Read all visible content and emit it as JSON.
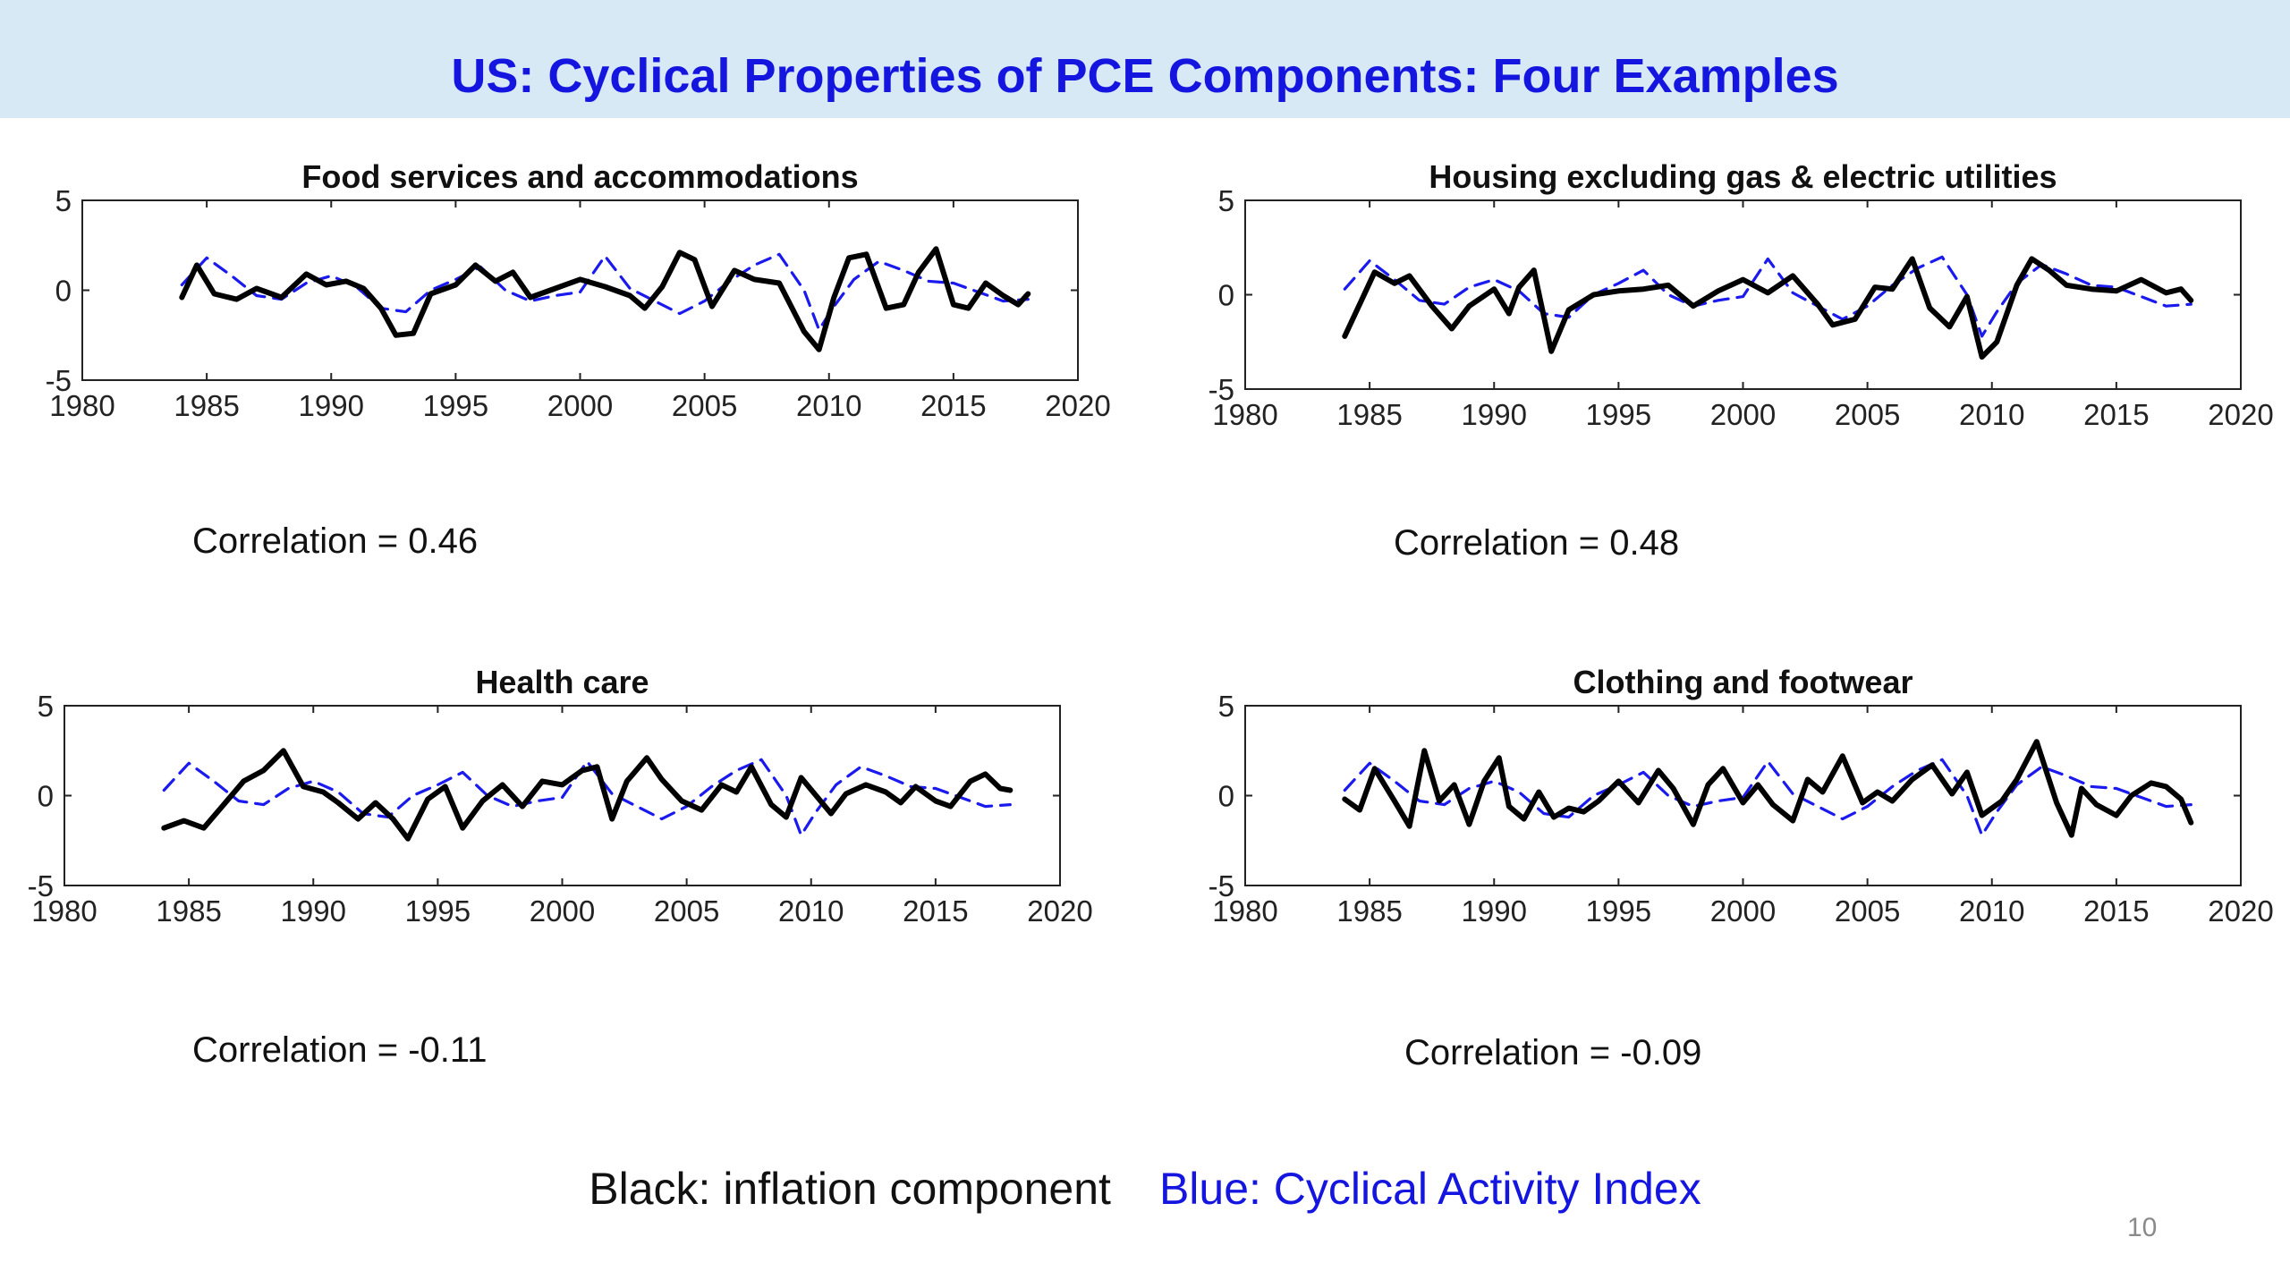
{
  "slide": {
    "title": "US: Cyclical Properties of PCE Components: Four Examples",
    "legend_black": "Black: inflation component",
    "legend_blue": "Blue: Cyclical Activity Index",
    "page_number": "10"
  },
  "colors": {
    "inflation_line": "#000000",
    "activity_index_line": "#1a1aee",
    "title": "#1515e0",
    "title_bar": "#d6e9f5"
  },
  "chart_data": [
    {
      "type": "line",
      "title": "Food services and accommodations",
      "correlation_text": "Correlation = 0.46",
      "xlim": [
        1980,
        2020
      ],
      "ylim": [
        -5,
        5
      ],
      "xticks": [
        1980,
        1985,
        1990,
        1995,
        2000,
        2005,
        2010,
        2015,
        2020
      ],
      "yticks": [
        -5,
        0,
        5
      ],
      "grid": false,
      "series": [
        {
          "role": "inflation",
          "style": "solid-black",
          "x": [
            1984.0,
            1984.6,
            1985.3,
            1986.2,
            1987.0,
            1988.0,
            1989.0,
            1989.8,
            1990.6,
            1991.3,
            1992.0,
            1992.6,
            1993.3,
            1994.0,
            1995.0,
            1995.8,
            1996.6,
            1997.3,
            1998.0,
            1999.0,
            2000.0,
            2001.0,
            2002.0,
            2002.6,
            2003.3,
            2004.0,
            2004.6,
            2005.3,
            2006.2,
            2007.0,
            2008.0,
            2009.0,
            2009.6,
            2010.2,
            2010.8,
            2011.5,
            2012.3,
            2013.0,
            2013.6,
            2014.3,
            2015.0,
            2015.6,
            2016.3,
            2017.0,
            2017.6,
            2018.0
          ],
          "y": [
            -0.4,
            1.4,
            -0.2,
            -0.5,
            0.1,
            -0.4,
            0.9,
            0.3,
            0.5,
            0.1,
            -1.0,
            -2.5,
            -2.4,
            -0.2,
            0.3,
            1.4,
            0.5,
            1.0,
            -0.4,
            0.1,
            0.6,
            0.2,
            -0.3,
            -1.0,
            0.2,
            2.1,
            1.7,
            -0.9,
            1.1,
            0.6,
            0.4,
            -2.3,
            -3.3,
            -0.4,
            1.8,
            2.0,
            -1.0,
            -0.8,
            1.0,
            2.3,
            -0.8,
            -1.0,
            0.4,
            -0.3,
            -0.8,
            -0.2
          ]
        },
        {
          "role": "activity_index",
          "style": "dashed-blue",
          "x": [
            1984.0,
            1985.0,
            1986.0,
            1987.0,
            1988.0,
            1989.0,
            1990.0,
            1991.0,
            1992.0,
            1993.0,
            1994.0,
            1995.0,
            1996.0,
            1997.0,
            1998.0,
            1999.0,
            2000.0,
            2001.0,
            2002.0,
            2003.0,
            2004.0,
            2005.0,
            2006.0,
            2007.0,
            2008.0,
            2009.0,
            2009.6,
            2010.2,
            2011.0,
            2012.0,
            2013.0,
            2014.0,
            2015.0,
            2016.0,
            2017.0,
            2018.0
          ],
          "y": [
            0.3,
            1.8,
            0.8,
            -0.3,
            -0.5,
            0.4,
            0.8,
            0.2,
            -1.0,
            -1.2,
            0.0,
            0.6,
            1.3,
            0.0,
            -0.6,
            -0.3,
            -0.1,
            1.9,
            0.1,
            -0.6,
            -1.3,
            -0.6,
            0.5,
            1.4,
            2.0,
            0.0,
            -2.2,
            -0.9,
            0.6,
            1.6,
            1.1,
            0.5,
            0.4,
            -0.1,
            -0.6,
            -0.5
          ]
        }
      ]
    },
    {
      "type": "line",
      "title": "Housing excluding gas & electric utilities",
      "correlation_text": "Correlation = 0.48",
      "xlim": [
        1980,
        2020
      ],
      "ylim": [
        -5,
        5
      ],
      "xticks": [
        1980,
        1985,
        1990,
        1995,
        2000,
        2005,
        2010,
        2015,
        2020
      ],
      "yticks": [
        -5,
        0,
        5
      ],
      "grid": false,
      "series": [
        {
          "role": "inflation",
          "style": "solid-black",
          "x": [
            1984.0,
            1984.6,
            1985.2,
            1986.0,
            1986.6,
            1987.5,
            1988.3,
            1989.0,
            1990.0,
            1990.6,
            1991.0,
            1991.6,
            1992.3,
            1993.0,
            1994.0,
            1995.0,
            1996.0,
            1997.0,
            1998.0,
            1999.0,
            2000.0,
            2001.0,
            2002.0,
            2003.0,
            2003.6,
            2004.5,
            2005.3,
            2006.0,
            2006.8,
            2007.5,
            2008.3,
            2009.0,
            2009.6,
            2010.2,
            2011.0,
            2011.6,
            2012.3,
            2013.0,
            2014.0,
            2015.0,
            2016.0,
            2017.0,
            2017.6,
            2018.0
          ],
          "y": [
            -2.2,
            -0.5,
            1.2,
            0.6,
            1.0,
            -0.6,
            -1.8,
            -0.6,
            0.3,
            -1.0,
            0.4,
            1.3,
            -3.0,
            -0.8,
            0.0,
            0.2,
            0.3,
            0.5,
            -0.6,
            0.2,
            0.8,
            0.1,
            1.0,
            -0.5,
            -1.6,
            -1.3,
            0.4,
            0.3,
            1.9,
            -0.7,
            -1.7,
            -0.1,
            -3.3,
            -2.5,
            0.5,
            1.9,
            1.3,
            0.5,
            0.3,
            0.2,
            0.8,
            0.1,
            0.3,
            -0.3
          ]
        },
        {
          "role": "activity_index",
          "style": "dashed-blue",
          "x": [
            1984.0,
            1985.0,
            1986.0,
            1987.0,
            1988.0,
            1989.0,
            1990.0,
            1991.0,
            1992.0,
            1993.0,
            1994.0,
            1995.0,
            1996.0,
            1997.0,
            1998.0,
            1999.0,
            2000.0,
            2001.0,
            2002.0,
            2003.0,
            2004.0,
            2005.0,
            2006.0,
            2007.0,
            2008.0,
            2009.0,
            2009.6,
            2010.2,
            2011.0,
            2012.0,
            2013.0,
            2014.0,
            2015.0,
            2016.0,
            2017.0,
            2018.0
          ],
          "y": [
            0.3,
            1.8,
            0.8,
            -0.3,
            -0.5,
            0.4,
            0.8,
            0.2,
            -1.0,
            -1.2,
            0.0,
            0.6,
            1.3,
            0.0,
            -0.6,
            -0.3,
            -0.1,
            1.9,
            0.1,
            -0.6,
            -1.3,
            -0.6,
            0.5,
            1.4,
            2.0,
            0.0,
            -2.2,
            -0.9,
            0.6,
            1.6,
            1.1,
            0.5,
            0.4,
            -0.1,
            -0.6,
            -0.5
          ]
        }
      ]
    },
    {
      "type": "line",
      "title": "Health care",
      "correlation_text": "Correlation = -0.11",
      "xlim": [
        1980,
        2020
      ],
      "ylim": [
        -5,
        5
      ],
      "xticks": [
        1980,
        1985,
        1990,
        1995,
        2000,
        2005,
        2010,
        2015,
        2020
      ],
      "yticks": [
        -5,
        0,
        5
      ],
      "grid": false,
      "series": [
        {
          "role": "inflation",
          "style": "solid-black",
          "x": [
            1984.0,
            1984.8,
            1985.6,
            1986.4,
            1987.2,
            1988.0,
            1988.8,
            1989.6,
            1990.4,
            1991.0,
            1991.8,
            1992.5,
            1993.2,
            1993.8,
            1994.6,
            1995.3,
            1996.0,
            1996.8,
            1997.6,
            1998.4,
            1999.2,
            2000.0,
            2000.8,
            2001.4,
            2002.0,
            2002.6,
            2003.4,
            2004.0,
            2004.8,
            2005.6,
            2006.4,
            2007.0,
            2007.6,
            2008.4,
            2009.0,
            2009.6,
            2010.2,
            2010.8,
            2011.4,
            2012.2,
            2013.0,
            2013.6,
            2014.2,
            2015.0,
            2015.6,
            2016.4,
            2017.0,
            2017.6,
            2018.0
          ],
          "y": [
            -1.8,
            -1.4,
            -1.8,
            -0.5,
            0.8,
            1.4,
            2.5,
            0.5,
            0.2,
            -0.4,
            -1.3,
            -0.4,
            -1.3,
            -2.4,
            -0.2,
            0.5,
            -1.8,
            -0.3,
            0.6,
            -0.6,
            0.8,
            0.6,
            1.4,
            1.6,
            -1.3,
            0.8,
            2.1,
            0.9,
            -0.3,
            -0.8,
            0.6,
            0.2,
            1.6,
            -0.5,
            -1.2,
            1.0,
            0.0,
            -1.0,
            0.1,
            0.6,
            0.2,
            -0.4,
            0.5,
            -0.3,
            -0.6,
            0.8,
            1.2,
            0.4,
            0.3
          ]
        },
        {
          "role": "activity_index",
          "style": "dashed-blue",
          "x": [
            1984.0,
            1985.0,
            1986.0,
            1987.0,
            1988.0,
            1989.0,
            1990.0,
            1991.0,
            1992.0,
            1993.0,
            1994.0,
            1995.0,
            1996.0,
            1997.0,
            1998.0,
            1999.0,
            2000.0,
            2001.0,
            2002.0,
            2003.0,
            2004.0,
            2005.0,
            2006.0,
            2007.0,
            2008.0,
            2009.0,
            2009.6,
            2010.2,
            2011.0,
            2012.0,
            2013.0,
            2014.0,
            2015.0,
            2016.0,
            2017.0,
            2018.0
          ],
          "y": [
            0.3,
            1.8,
            0.8,
            -0.3,
            -0.5,
            0.4,
            0.8,
            0.2,
            -1.0,
            -1.2,
            0.0,
            0.6,
            1.3,
            0.0,
            -0.6,
            -0.3,
            -0.1,
            1.9,
            0.1,
            -0.6,
            -1.3,
            -0.6,
            0.5,
            1.4,
            2.0,
            0.0,
            -2.2,
            -0.9,
            0.6,
            1.6,
            1.1,
            0.5,
            0.4,
            -0.1,
            -0.6,
            -0.5
          ]
        }
      ]
    },
    {
      "type": "line",
      "title": "Clothing and footwear",
      "correlation_text": "Correlation = -0.09",
      "xlim": [
        1980,
        2020
      ],
      "ylim": [
        -5,
        5
      ],
      "xticks": [
        1980,
        1985,
        1990,
        1995,
        2000,
        2005,
        2010,
        2015,
        2020
      ],
      "yticks": [
        -5,
        0,
        5
      ],
      "grid": false,
      "series": [
        {
          "role": "inflation",
          "style": "solid-black",
          "x": [
            1984.0,
            1984.6,
            1985.2,
            1986.0,
            1986.6,
            1987.2,
            1987.8,
            1988.4,
            1989.0,
            1989.6,
            1990.2,
            1990.6,
            1991.2,
            1991.8,
            1992.4,
            1993.0,
            1993.6,
            1994.2,
            1995.0,
            1995.8,
            1996.6,
            1997.2,
            1998.0,
            1998.6,
            1999.2,
            2000.0,
            2000.6,
            2001.2,
            2002.0,
            2002.6,
            2003.2,
            2004.0,
            2004.8,
            2005.4,
            2006.0,
            2006.8,
            2007.6,
            2008.4,
            2009.0,
            2009.6,
            2010.4,
            2011.0,
            2011.8,
            2012.6,
            2013.2,
            2013.6,
            2014.2,
            2015.0,
            2015.6,
            2016.4,
            2017.0,
            2017.6,
            2018.0
          ],
          "y": [
            -0.2,
            -0.8,
            1.5,
            -0.3,
            -1.7,
            2.5,
            -0.3,
            0.6,
            -1.6,
            0.8,
            2.1,
            -0.6,
            -1.3,
            0.2,
            -1.2,
            -0.7,
            -0.9,
            -0.3,
            0.8,
            -0.4,
            1.4,
            0.4,
            -1.6,
            0.6,
            1.5,
            -0.4,
            0.6,
            -0.5,
            -1.4,
            0.9,
            0.2,
            2.2,
            -0.4,
            0.2,
            -0.3,
            0.9,
            1.7,
            0.1,
            1.3,
            -1.1,
            -0.3,
            0.9,
            3.0,
            -0.4,
            -2.2,
            0.4,
            -0.5,
            -1.1,
            0.0,
            0.7,
            0.5,
            -0.2,
            -1.5
          ]
        },
        {
          "role": "activity_index",
          "style": "dashed-blue",
          "x": [
            1984.0,
            1985.0,
            1986.0,
            1987.0,
            1988.0,
            1989.0,
            1990.0,
            1991.0,
            1992.0,
            1993.0,
            1994.0,
            1995.0,
            1996.0,
            1997.0,
            1998.0,
            1999.0,
            2000.0,
            2001.0,
            2002.0,
            2003.0,
            2004.0,
            2005.0,
            2006.0,
            2007.0,
            2008.0,
            2009.0,
            2009.6,
            2010.2,
            2011.0,
            2012.0,
            2013.0,
            2014.0,
            2015.0,
            2016.0,
            2017.0,
            2018.0
          ],
          "y": [
            0.3,
            1.8,
            0.8,
            -0.3,
            -0.5,
            0.4,
            0.8,
            0.2,
            -1.0,
            -1.2,
            0.0,
            0.6,
            1.3,
            0.0,
            -0.6,
            -0.3,
            -0.1,
            1.9,
            0.1,
            -0.6,
            -1.3,
            -0.6,
            0.5,
            1.4,
            2.0,
            0.0,
            -2.2,
            -0.9,
            0.6,
            1.6,
            1.1,
            0.5,
            0.4,
            -0.1,
            -0.6,
            -0.5
          ]
        }
      ]
    }
  ]
}
